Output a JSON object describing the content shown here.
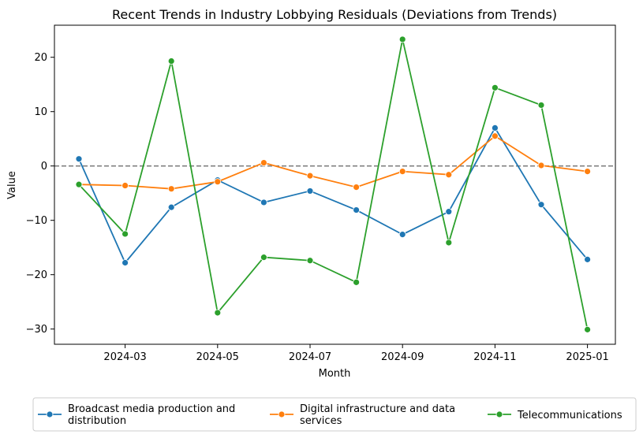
{
  "chart_data": {
    "type": "line",
    "title": "Recent Trends in Industry Lobbying Residuals (Deviations from Trends)",
    "xlabel": "Month",
    "ylabel": "Value",
    "x": [
      "2024-02",
      "2024-03",
      "2024-04",
      "2024-05",
      "2024-06",
      "2024-07",
      "2024-08",
      "2024-09",
      "2024-10",
      "2024-11",
      "2024-12",
      "2025-01"
    ],
    "xticks": [
      "2024-03",
      "2024-05",
      "2024-07",
      "2024-09",
      "2024-11",
      "2025-01"
    ],
    "yticks": [
      20,
      10,
      0,
      -10,
      -20,
      -30
    ],
    "ytick_labels": [
      "20",
      "10",
      "0",
      "−10",
      "−20",
      "−30"
    ],
    "ylim": [
      -32.8,
      25.9
    ],
    "reference_line": {
      "y": 0,
      "style": "dashed",
      "color": "#808080"
    },
    "grid": false,
    "legend_position": "bottom-center",
    "series": [
      {
        "name": "Broadcast media production and distribution",
        "legend_lines": [
          "Broadcast media production and",
          "distribution"
        ],
        "color": "#1f77b4",
        "values": [
          1.3,
          -17.8,
          -7.6,
          -2.6,
          -6.7,
          -4.6,
          -8.1,
          -12.6,
          -8.4,
          7.0,
          -7.1,
          -17.2
        ]
      },
      {
        "name": "Digital infrastructure and data services",
        "legend_lines": [
          "Digital infrastructure and data",
          "services"
        ],
        "color": "#ff7f0e",
        "values": [
          -3.4,
          -3.6,
          -4.2,
          -2.9,
          0.6,
          -1.8,
          -3.9,
          -1.0,
          -1.6,
          5.5,
          0.1,
          -1.0
        ]
      },
      {
        "name": "Telecommunications",
        "legend_lines": [
          "Telecommunications"
        ],
        "color": "#2ca02c",
        "values": [
          -3.4,
          -12.5,
          19.3,
          -27.0,
          -16.8,
          -17.4,
          -21.4,
          23.3,
          -14.1,
          14.4,
          11.2,
          -30.1
        ]
      }
    ]
  }
}
